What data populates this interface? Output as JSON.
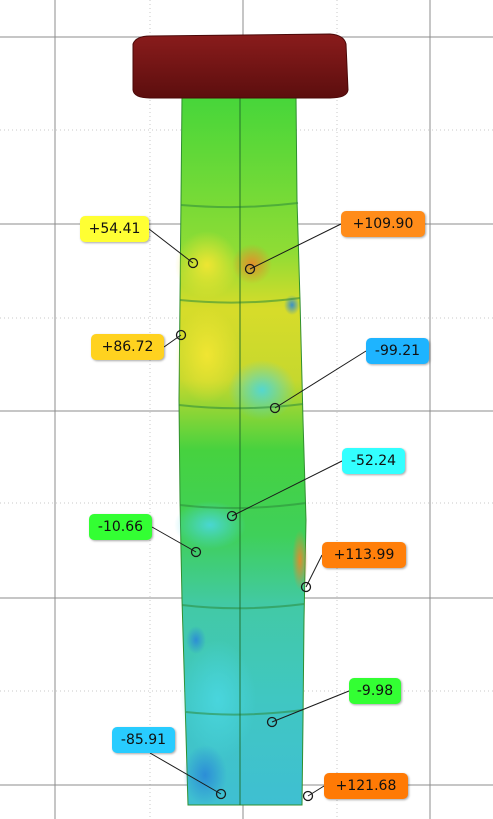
{
  "colors": {
    "background": "#ffffff",
    "grid_major": "#8c8c8c",
    "grid_minor": "#c8c8c8",
    "cap": "#7a1616",
    "leader": "#1a1a1a"
  },
  "annotations": [
    {
      "id": "a1",
      "value": "+54.41",
      "color": "#ffff33"
    },
    {
      "id": "a2",
      "value": "+109.90",
      "color": "#ff8c1a"
    },
    {
      "id": "a3",
      "value": "+86.72",
      "color": "#ffd21f"
    },
    {
      "id": "a4",
      "value": "-99.21",
      "color": "#1eb4ff"
    },
    {
      "id": "a5",
      "value": "-52.24",
      "color": "#33ffff"
    },
    {
      "id": "a6",
      "value": "-10.66",
      "color": "#33ff33"
    },
    {
      "id": "a7",
      "value": "+113.99",
      "color": "#ff7f0a"
    },
    {
      "id": "a8",
      "value": "-9.98",
      "color": "#33ff33"
    },
    {
      "id": "a9",
      "value": "-85.91",
      "color": "#28ccff"
    },
    {
      "id": "a10",
      "value": "+121.68",
      "color": "#ff7a05"
    }
  ]
}
